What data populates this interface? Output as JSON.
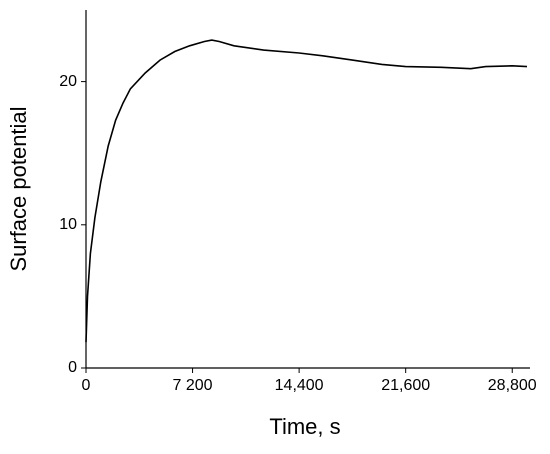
{
  "chart_data": {
    "type": "line",
    "xlabel": "Time, s",
    "ylabel": "Surface potential",
    "x": [
      0,
      100,
      300,
      600,
      1000,
      1500,
      2000,
      2500,
      3000,
      4000,
      5000,
      6000,
      7000,
      8000,
      8500,
      9000,
      10000,
      12000,
      14400,
      16000,
      18000,
      20000,
      21600,
      24000,
      26000,
      27000,
      28800,
      29800
    ],
    "series": [
      {
        "name": "Surface potential",
        "color": "#000000",
        "values": [
          1.8,
          5,
          8,
          10.5,
          13,
          15.5,
          17.3,
          18.5,
          19.5,
          20.6,
          21.5,
          22.1,
          22.5,
          22.8,
          22.9,
          22.8,
          22.5,
          22.2,
          22.0,
          21.8,
          21.5,
          21.2,
          21.05,
          21.0,
          20.9,
          21.05,
          21.1,
          21.05
        ]
      }
    ],
    "xlim": [
      0,
      30000
    ],
    "ylim": [
      0,
      25
    ],
    "xticks": [
      0,
      {
        "value": 7200,
        "label": "7 200"
      },
      {
        "value": 14400,
        "label": "14,400"
      },
      {
        "value": 21600,
        "label": "21,600"
      },
      {
        "value": 28800,
        "label": "28,800"
      }
    ],
    "yticks": [
      0,
      10,
      20
    ]
  }
}
